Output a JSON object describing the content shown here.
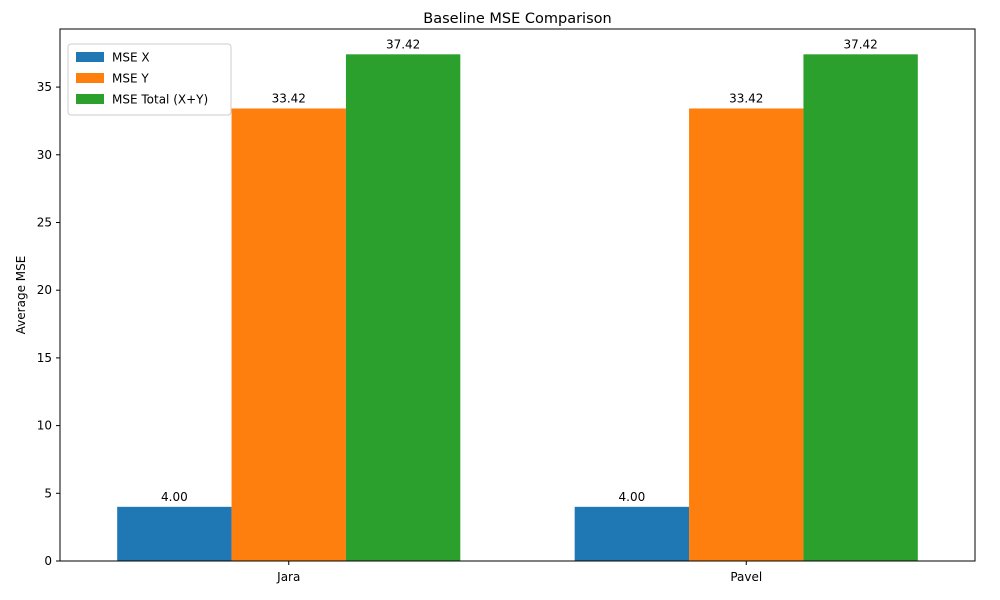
{
  "chart_data": {
    "type": "bar",
    "title": "Baseline MSE Comparison",
    "xlabel": "",
    "ylabel": "Average MSE",
    "categories": [
      "Jara",
      "Pavel"
    ],
    "series": [
      {
        "name": "MSE X",
        "color": "#1f77b4",
        "values": [
          4.0,
          4.0
        ],
        "labels": [
          "4.00",
          "4.00"
        ]
      },
      {
        "name": "MSE Y",
        "color": "#ff7f0e",
        "values": [
          33.42,
          33.42
        ],
        "labels": [
          "33.42",
          "33.42"
        ]
      },
      {
        "name": "MSE Total (X+Y)",
        "color": "#2ca02c",
        "values": [
          37.42,
          37.42
        ],
        "labels": [
          "37.42",
          "37.42"
        ]
      }
    ],
    "ylim": [
      0,
      39.29
    ],
    "yticks": [
      0,
      5,
      10,
      15,
      20,
      25,
      30,
      35
    ],
    "ytick_labels": [
      "0",
      "5",
      "10",
      "15",
      "20",
      "25",
      "30",
      "35"
    ],
    "grid": false,
    "legend_position": "top-left"
  }
}
